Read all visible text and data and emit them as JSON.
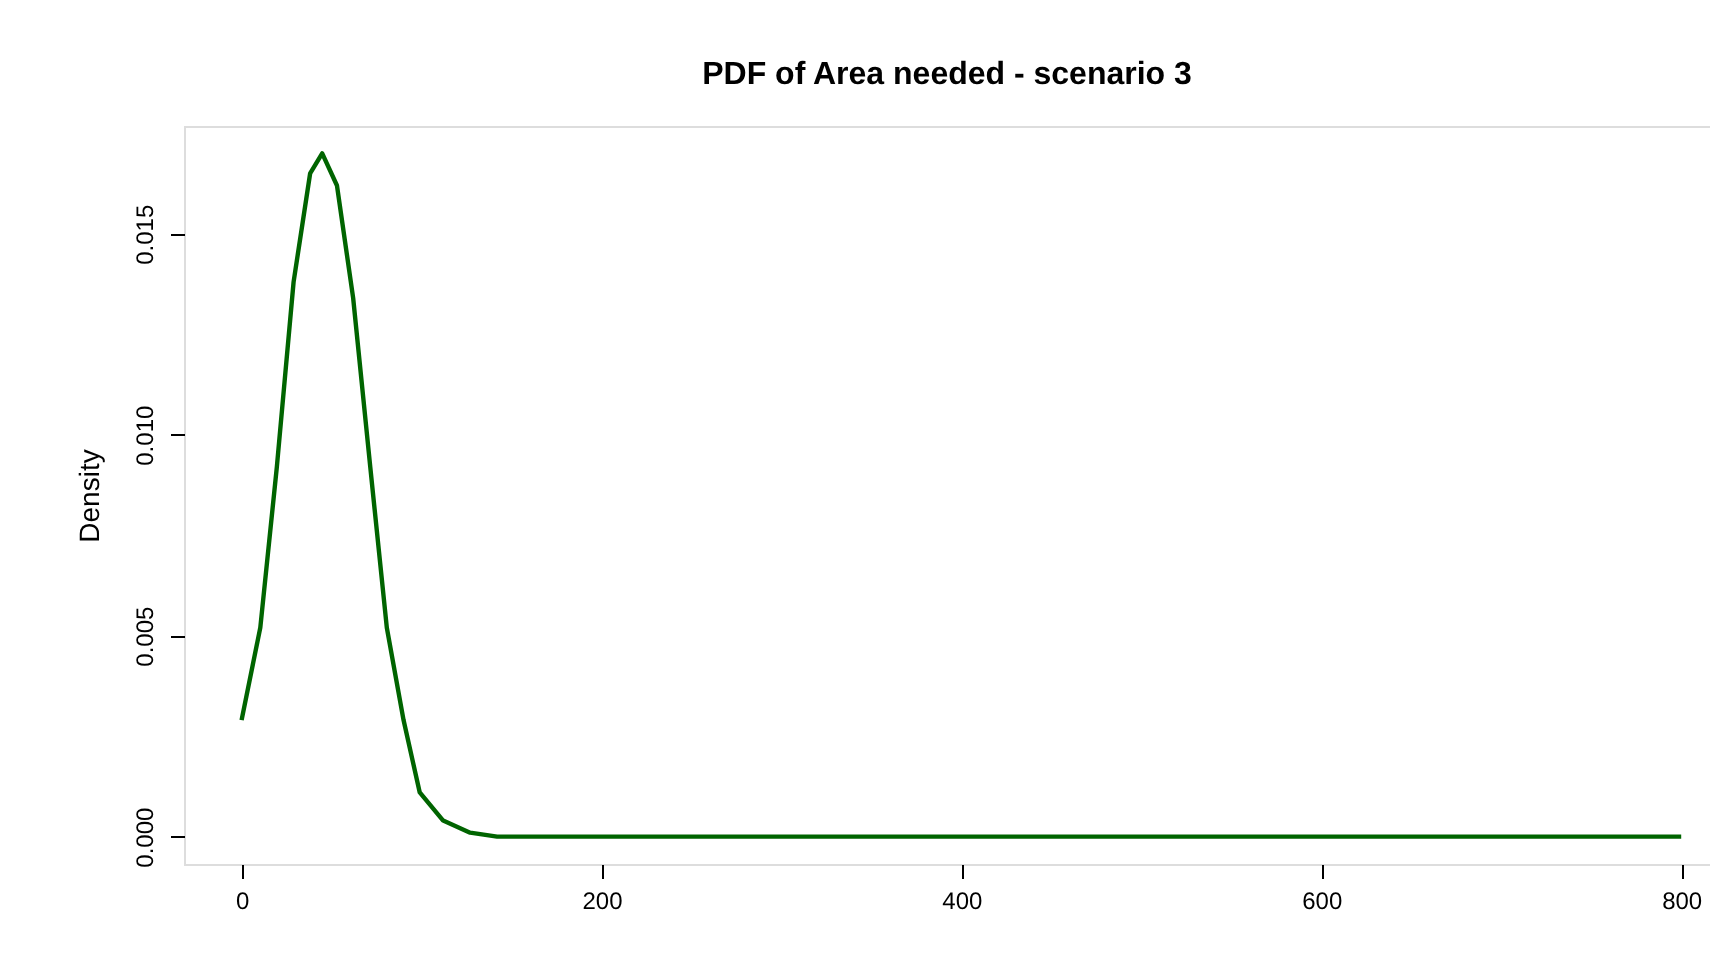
{
  "chart_data": {
    "type": "line",
    "title": "PDF of Area needed - scenario 3",
    "ylabel": "Density",
    "x": [
      0,
      10.4,
      19.6,
      28.9,
      38.1,
      44.8,
      53,
      62,
      71.5,
      80.7,
      90,
      99,
      112,
      127,
      142,
      200,
      300,
      400,
      500,
      600,
      700,
      800
    ],
    "series": [
      {
        "color": "#006400",
        "values": [
          0.0029,
          0.0052,
          0.0092,
          0.0138,
          0.0165,
          0.017,
          0.0162,
          0.0134,
          0.0092,
          0.0052,
          0.0029,
          0.0011,
          0.0004,
          0.0001,
          0.0,
          0.0,
          0.0,
          0.0,
          0.0,
          0.0,
          0.0,
          0.0
        ]
      }
    ],
    "xlim": [
      -32,
      816
    ],
    "xticks": [
      0,
      200,
      400,
      600,
      800
    ],
    "ylim": [
      -0.00068,
      0.01768
    ],
    "yticks": [
      {
        "value": 0,
        "label": "0.000"
      },
      {
        "value": 0.005,
        "label": "0.005"
      },
      {
        "value": 0.01,
        "label": "0.010"
      },
      {
        "value": 0.015,
        "label": "0.015"
      }
    ],
    "grid": false,
    "legend": false,
    "marker": "none",
    "line_style": "solid"
  }
}
